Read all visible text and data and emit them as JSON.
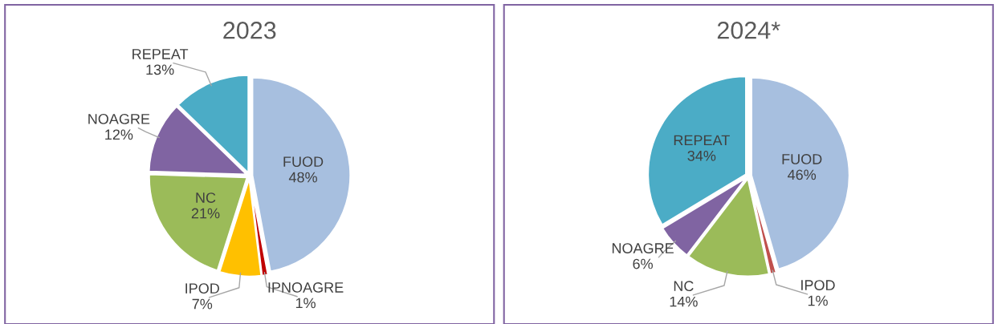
{
  "chart_data": [
    {
      "type": "pie",
      "title": "2023",
      "categories": [
        "FUOD",
        "IPNOAGRE",
        "IPOD",
        "NC",
        "NOAGRE",
        "REPEAT"
      ],
      "values": [
        48,
        1,
        7,
        21,
        12,
        13
      ],
      "value_labels": [
        "48%",
        "1%",
        "7%",
        "21%",
        "12%",
        "13%"
      ],
      "colors": [
        "#a7bfdf",
        "#c00000",
        "#ffc000",
        "#9bbb59",
        "#8064a2",
        "#4bacc6"
      ],
      "legend": false
    },
    {
      "type": "pie",
      "title": "2024*",
      "categories": [
        "FUOD",
        "IPOD",
        "NC",
        "NOAGRE",
        "REPEAT"
      ],
      "values": [
        46,
        1,
        14,
        6,
        34
      ],
      "value_labels": [
        "46%",
        "1%",
        "14%",
        "6%",
        "34%"
      ],
      "colors": [
        "#a7bfdf",
        "#c0504d",
        "#9bbb59",
        "#8064a2",
        "#4bacc6"
      ],
      "legend": false
    }
  ]
}
